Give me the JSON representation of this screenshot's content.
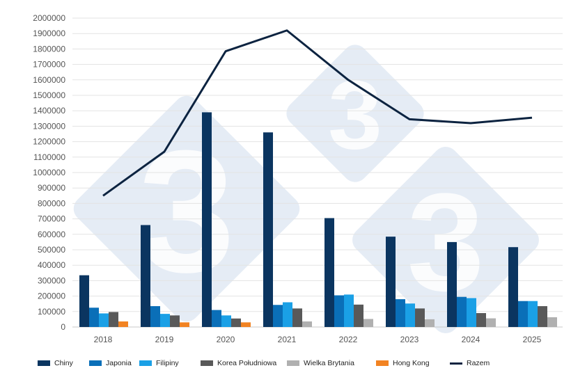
{
  "chart_data": {
    "type": "bar",
    "categories": [
      "2018",
      "2019",
      "2020",
      "2021",
      "2022",
      "2023",
      "2024",
      "2025"
    ],
    "ylim": [
      0,
      2000000
    ],
    "yticks": [
      "0",
      "100000",
      "200000",
      "300000",
      "400000",
      "500000",
      "600000",
      "700000",
      "800000",
      "900000",
      "1000000",
      "1100000",
      "1200000",
      "1300000",
      "1400000",
      "1500000",
      "1600000",
      "1700000",
      "1800000",
      "1900000",
      "2000000"
    ],
    "grid": true,
    "legend_position": "bottom",
    "series": [
      {
        "name": "Chiny",
        "color": "#0b3560",
        "values": [
          335000,
          660000,
          1390000,
          1260000,
          705000,
          585000,
          550000,
          517000
        ]
      },
      {
        "name": "Japonia",
        "color": "#0a6fb8",
        "values": [
          125000,
          135000,
          110000,
          143000,
          205000,
          180000,
          195000,
          168000
        ]
      },
      {
        "name": "Filipiny",
        "color": "#1aa0e6",
        "values": [
          88000,
          85000,
          75000,
          160000,
          210000,
          152000,
          187000,
          168000
        ]
      },
      {
        "name": "Korea Południowa",
        "color": "#595959",
        "values": [
          97000,
          75000,
          55000,
          120000,
          145000,
          120000,
          90000,
          135000
        ]
      },
      {
        "name": "Wielka Brytania",
        "color": "#b0b0b0",
        "values": [
          null,
          null,
          null,
          36000,
          52000,
          50000,
          56000,
          63000
        ]
      },
      {
        "name": "Hong Kong",
        "color": "#f28322",
        "values": [
          36000,
          30000,
          30000,
          null,
          null,
          null,
          null,
          null
        ]
      }
    ],
    "line": {
      "name": "Razem",
      "color": "#0c2340",
      "values": [
        850000,
        1135000,
        1785000,
        1920000,
        1600000,
        1345000,
        1320000,
        1355000
      ]
    }
  },
  "watermark": {
    "glyph": "3",
    "color": "#dce6f2"
  }
}
